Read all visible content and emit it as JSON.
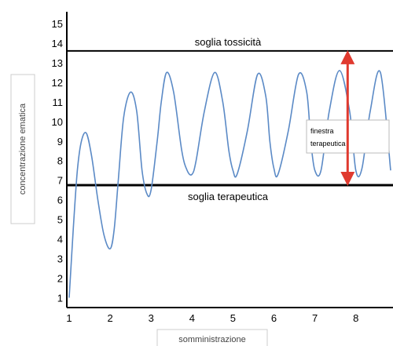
{
  "chart_data": {
    "type": "line",
    "title": "",
    "xlabel": "somministrazione",
    "ylabel": "concentrazione ematica",
    "xlim": [
      1,
      8.85
    ],
    "ylim": [
      0.5,
      15.6
    ],
    "x_ticks": [
      "1",
      "2",
      "3",
      "4",
      "5",
      "6",
      "7",
      "8"
    ],
    "y_ticks": [
      "1",
      "2",
      "3",
      "4",
      "5",
      "6",
      "7",
      "8",
      "9",
      "10",
      "11",
      "12",
      "13",
      "14",
      "15"
    ],
    "grid": false,
    "series": [
      {
        "color": "#5b8ac6",
        "x": [
          1.0,
          1.1,
          1.2,
          1.3,
          1.42,
          1.55,
          1.7,
          1.85,
          2.0,
          2.1,
          2.2,
          2.33,
          2.5,
          2.65,
          2.78,
          2.9,
          3.0,
          3.15,
          3.25,
          3.38,
          3.55,
          3.75,
          3.88,
          4.0,
          4.1,
          4.3,
          4.55,
          4.75,
          4.9,
          5.0,
          5.1,
          5.35,
          5.6,
          5.8,
          5.9,
          6.0,
          6.1,
          6.35,
          6.6,
          6.8,
          6.9,
          7.0,
          7.15,
          7.35,
          7.6,
          7.85,
          8.0,
          8.15,
          8.35,
          8.6,
          8.85
        ],
        "y": [
          1.0,
          4.5,
          7.5,
          9.0,
          9.4,
          8.2,
          6.0,
          4.2,
          3.5,
          4.5,
          7.0,
          10.2,
          11.5,
          10.5,
          7.5,
          6.3,
          6.5,
          9.0,
          11.0,
          12.5,
          11.5,
          8.5,
          7.5,
          7.3,
          8.0,
          10.5,
          12.5,
          11.0,
          8.5,
          7.5,
          7.3,
          9.5,
          12.4,
          11.3,
          9.0,
          7.6,
          7.3,
          9.5,
          12.4,
          11.5,
          9.0,
          7.5,
          7.5,
          10.5,
          12.6,
          10.5,
          7.5,
          7.6,
          10.5,
          12.5,
          7.5
        ]
      }
    ],
    "thresholds": [
      {
        "label": "soglia tossicità",
        "y": 13.6,
        "color": "#000000"
      },
      {
        "label": "soglia terapeutica",
        "y": 6.75,
        "color": "#000000"
      }
    ],
    "annotation": {
      "text_line1": "finestra",
      "text_line2": "terapeutica",
      "arrow_x": 7.8,
      "arrow_from": 13.6,
      "arrow_to": 6.75,
      "arrow_color": "#e03a2f"
    }
  }
}
